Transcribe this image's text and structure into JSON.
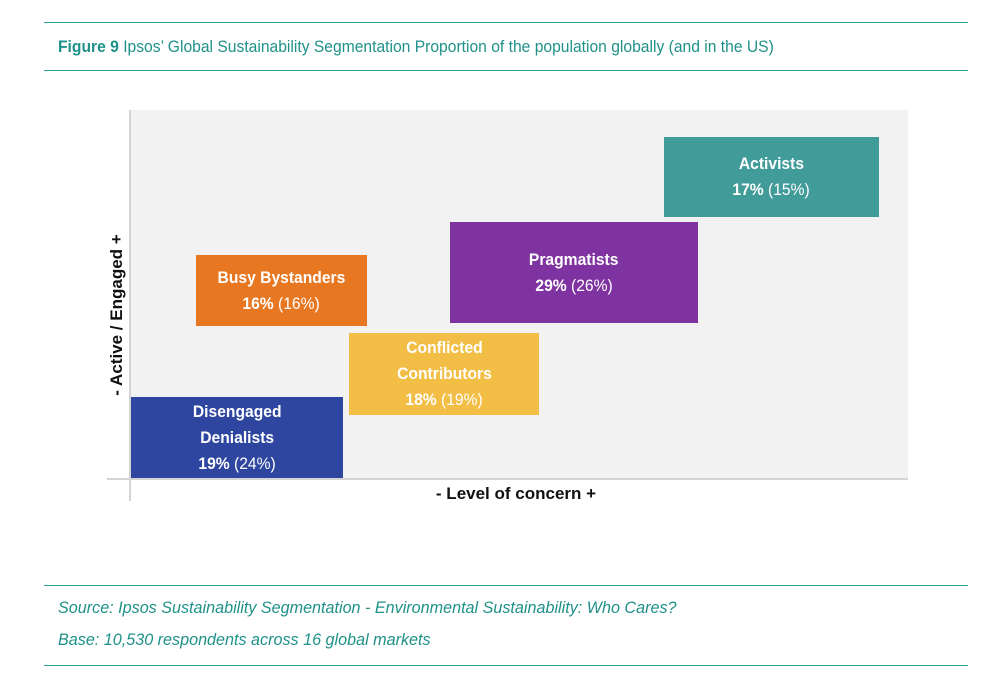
{
  "header": {
    "figure_label": "Figure 9",
    "title_text": "Ipsos’ Global Sustainability Segmentation Proportion of the population globally (and in the US)"
  },
  "chart_data": {
    "type": "quadrant-blocks",
    "xlabel": "-  Level of concern  +",
    "ylabel": "-  Active / Engaged  +",
    "segments": [
      {
        "name": "Activists",
        "global_pct": "17%",
        "us_pct": "(15%)",
        "color": "#419b99"
      },
      {
        "name": "Pragmatists",
        "global_pct": "29%",
        "us_pct": "(26%)",
        "color": "#7f33a0"
      },
      {
        "name": "Busy Bystanders",
        "global_pct": "16%",
        "us_pct": "(16%)",
        "color": "#e87722"
      },
      {
        "name": "Conflicted\nContributors",
        "global_pct": "18%",
        "us_pct": "(19%)",
        "color": "#f2be45"
      },
      {
        "name": "Disengaged\nDenialists",
        "global_pct": "19%",
        "us_pct": "(24%)",
        "color": "#2e46a0"
      }
    ]
  },
  "footer": {
    "source": "Source: Ipsos Sustainability Segmentation - Environmental Sustainability: Who Cares?",
    "base": "Base: 10,530 respondents across 16 global markets"
  }
}
